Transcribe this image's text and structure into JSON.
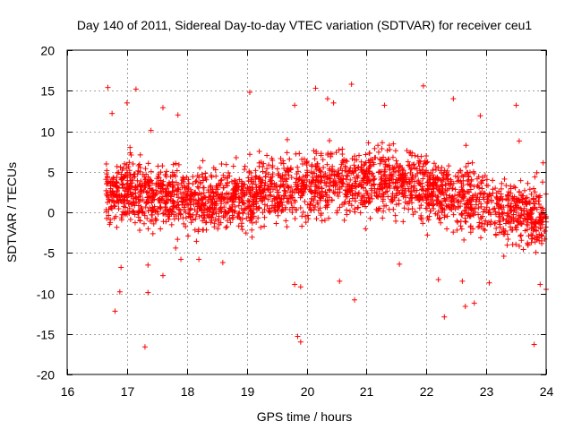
{
  "chart_data": {
    "type": "scatter",
    "title": "Day 140 of 2011, Sidereal Day-to-day VTEC variation (SDTVAR) for receiver ceu1",
    "xlabel": "GPS time / hours",
    "ylabel": "SDTVAR / TECUs",
    "xlim": [
      16,
      24
    ],
    "ylim": [
      -20,
      20
    ],
    "xticks": [
      16,
      17,
      18,
      19,
      20,
      21,
      22,
      23,
      24
    ],
    "yticks": [
      -20,
      -15,
      -10,
      -5,
      0,
      5,
      10,
      15,
      20
    ],
    "grid": true,
    "marker": "+",
    "color": "#ff0000",
    "dense_band": {
      "description_only": false,
      "x_start": 16.65,
      "x_end": 24.0,
      "center_profile": [
        [
          16.65,
          2.5
        ],
        [
          17.0,
          2.5
        ],
        [
          17.5,
          2.0
        ],
        [
          18.0,
          1.5
        ],
        [
          18.5,
          1.0
        ],
        [
          19.0,
          2.0
        ],
        [
          19.5,
          3.0
        ],
        [
          20.0,
          3.5
        ],
        [
          20.5,
          3.5
        ],
        [
          21.0,
          4.0
        ],
        [
          21.5,
          4.0
        ],
        [
          22.0,
          3.0
        ],
        [
          22.5,
          2.0
        ],
        [
          23.0,
          1.0
        ],
        [
          23.5,
          0.0
        ],
        [
          24.0,
          -1.0
        ]
      ],
      "spread": 3.5,
      "count": 2600
    },
    "outliers": [
      [
        16.68,
        15.4
      ],
      [
        16.75,
        12.2
      ],
      [
        16.8,
        -12.2
      ],
      [
        16.88,
        -9.8
      ],
      [
        16.9,
        -6.8
      ],
      [
        17.0,
        13.5
      ],
      [
        17.05,
        8.0
      ],
      [
        17.15,
        15.2
      ],
      [
        17.3,
        -16.6
      ],
      [
        17.35,
        -9.9
      ],
      [
        17.35,
        -6.5
      ],
      [
        17.4,
        10.1
      ],
      [
        17.6,
        12.9
      ],
      [
        17.6,
        -7.8
      ],
      [
        17.85,
        12.0
      ],
      [
        17.9,
        -5.8
      ],
      [
        18.2,
        -5.8
      ],
      [
        18.6,
        -6.2
      ],
      [
        19.05,
        14.8
      ],
      [
        19.8,
        13.2
      ],
      [
        19.8,
        -8.9
      ],
      [
        19.85,
        -15.3
      ],
      [
        19.9,
        -16.0
      ],
      [
        19.9,
        -9.2
      ],
      [
        20.15,
        15.3
      ],
      [
        20.35,
        14.0
      ],
      [
        20.55,
        -8.5
      ],
      [
        20.75,
        15.8
      ],
      [
        20.8,
        -10.8
      ],
      [
        20.45,
        13.5
      ],
      [
        21.3,
        13.2
      ],
      [
        21.55,
        -6.4
      ],
      [
        21.95,
        15.6
      ],
      [
        22.2,
        -8.3
      ],
      [
        22.3,
        -12.9
      ],
      [
        22.45,
        14.0
      ],
      [
        22.6,
        -8.5
      ],
      [
        22.65,
        -11.6
      ],
      [
        22.8,
        -11.2
      ],
      [
        22.9,
        11.9
      ],
      [
        23.05,
        -8.7
      ],
      [
        23.5,
        13.2
      ],
      [
        23.55,
        8.8
      ],
      [
        23.8,
        -16.3
      ],
      [
        23.9,
        -8.9
      ],
      [
        24.0,
        -9.5
      ],
      [
        23.95,
        6.1
      ]
    ]
  }
}
